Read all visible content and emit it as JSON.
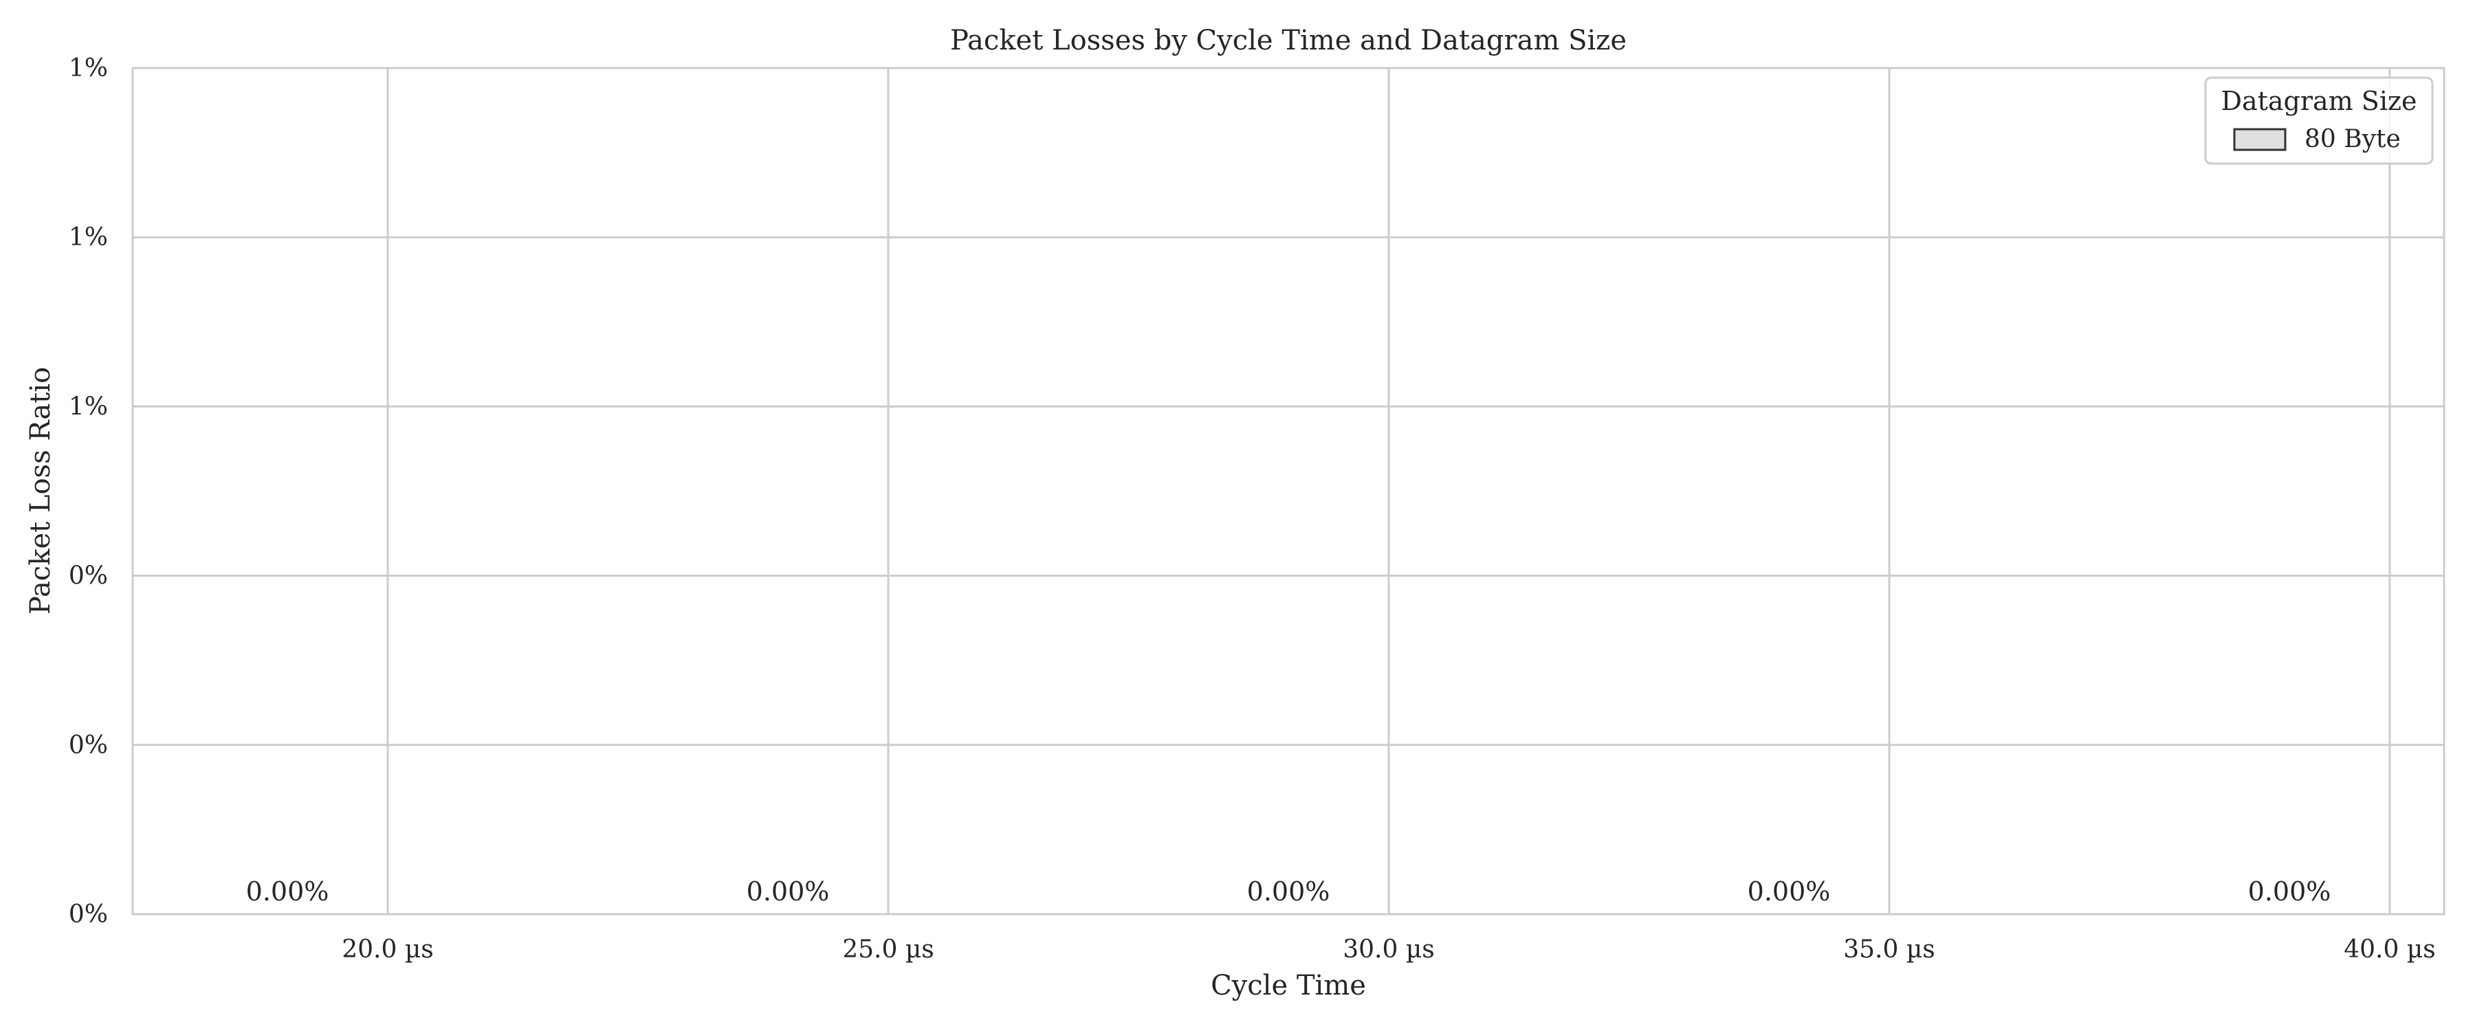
{
  "chart_data": {
    "type": "bar",
    "title": "Packet Losses by Cycle Time and Datagram Size",
    "xlabel": "Cycle Time",
    "ylabel": "Packet Loss Ratio",
    "categories": [
      "20.0 µs",
      "25.0 µs",
      "30.0 µs",
      "35.0 µs",
      "40.0 µs"
    ],
    "x_ticks": [
      "20.0 µs",
      "25.0 µs",
      "30.0 µs",
      "35.0 µs",
      "40.0 µs"
    ],
    "y_ticks": [
      "0%",
      "0%",
      "0%",
      "1%",
      "1%",
      "1%"
    ],
    "ylim": [
      0,
      1
    ],
    "grid": true,
    "legend": {
      "title": "Datagram Size",
      "placement": "top-right"
    },
    "series": [
      {
        "name": "80 Byte",
        "color": "#e0e0e0",
        "values": [
          0,
          0,
          0,
          0,
          0
        ],
        "value_labels": [
          "0.00%",
          "0.00%",
          "0.00%",
          "0.00%",
          "0.00%"
        ]
      }
    ]
  }
}
